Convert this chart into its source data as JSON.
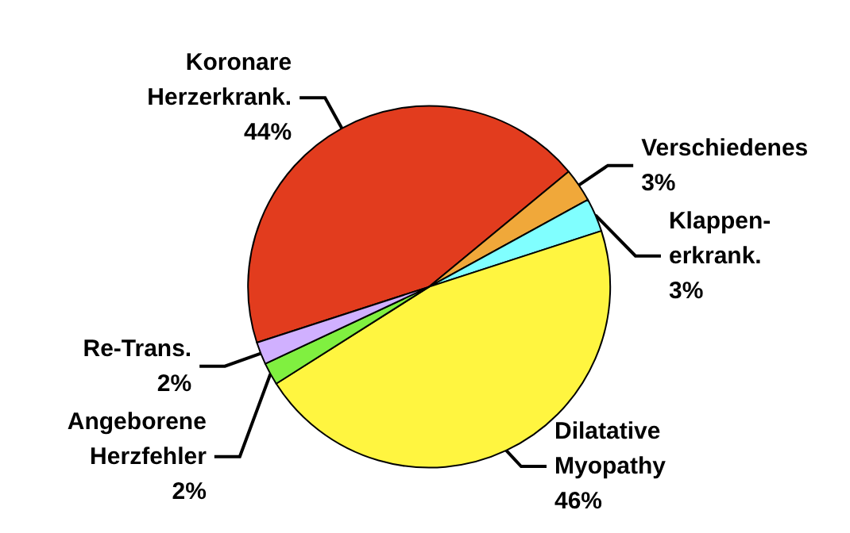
{
  "chart_data": {
    "type": "pie",
    "categories": [
      "Koronare\nHerzerkrank.",
      "Verschiedenes",
      "Klappen-\nerkrank.",
      "Dilatative\nMyopathy",
      "Angeborene\nHerzfehler",
      "Re-Trans."
    ],
    "values": [
      44,
      3,
      3,
      46,
      2,
      2
    ],
    "colors": [
      "#e23c1e",
      "#f0a83a",
      "#80ffff",
      "#fff540",
      "#80f040",
      "#d0b0ff"
    ],
    "value_labels": [
      "44%",
      "3%",
      "3%",
      "46%",
      "2%",
      "2%"
    ]
  }
}
